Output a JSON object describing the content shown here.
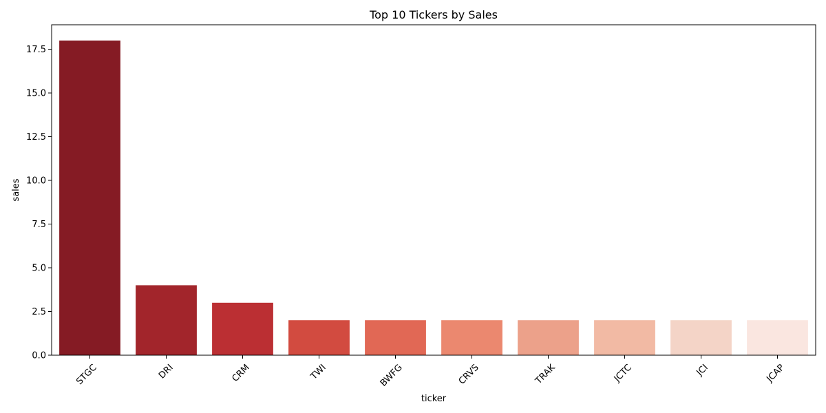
{
  "chart_data": {
    "type": "bar",
    "title": "Top 10 Tickers by Sales",
    "xlabel": "ticker",
    "ylabel": "sales",
    "categories": [
      "STGC",
      "DRI",
      "CRM",
      "TWI",
      "BWFG",
      "CRVS",
      "TRAK",
      "JCTC",
      "JCI",
      "JCAP"
    ],
    "values": [
      18,
      4,
      3,
      2,
      2,
      2,
      2,
      2,
      2,
      2
    ],
    "colors": [
      "#851b24",
      "#a2252b",
      "#bb2f33",
      "#d24b40",
      "#e16855",
      "#eb886f",
      "#eca18a",
      "#f2baa4",
      "#f4d4c7",
      "#fae6e0"
    ],
    "ylim": [
      0,
      18.9
    ],
    "yticks": [
      0.0,
      2.5,
      5.0,
      7.5,
      10.0,
      12.5,
      15.0,
      17.5
    ],
    "ytick_labels": [
      "0.0",
      "2.5",
      "5.0",
      "7.5",
      "10.0",
      "12.5",
      "15.0",
      "17.5"
    ],
    "grid": false,
    "legend": "none"
  }
}
